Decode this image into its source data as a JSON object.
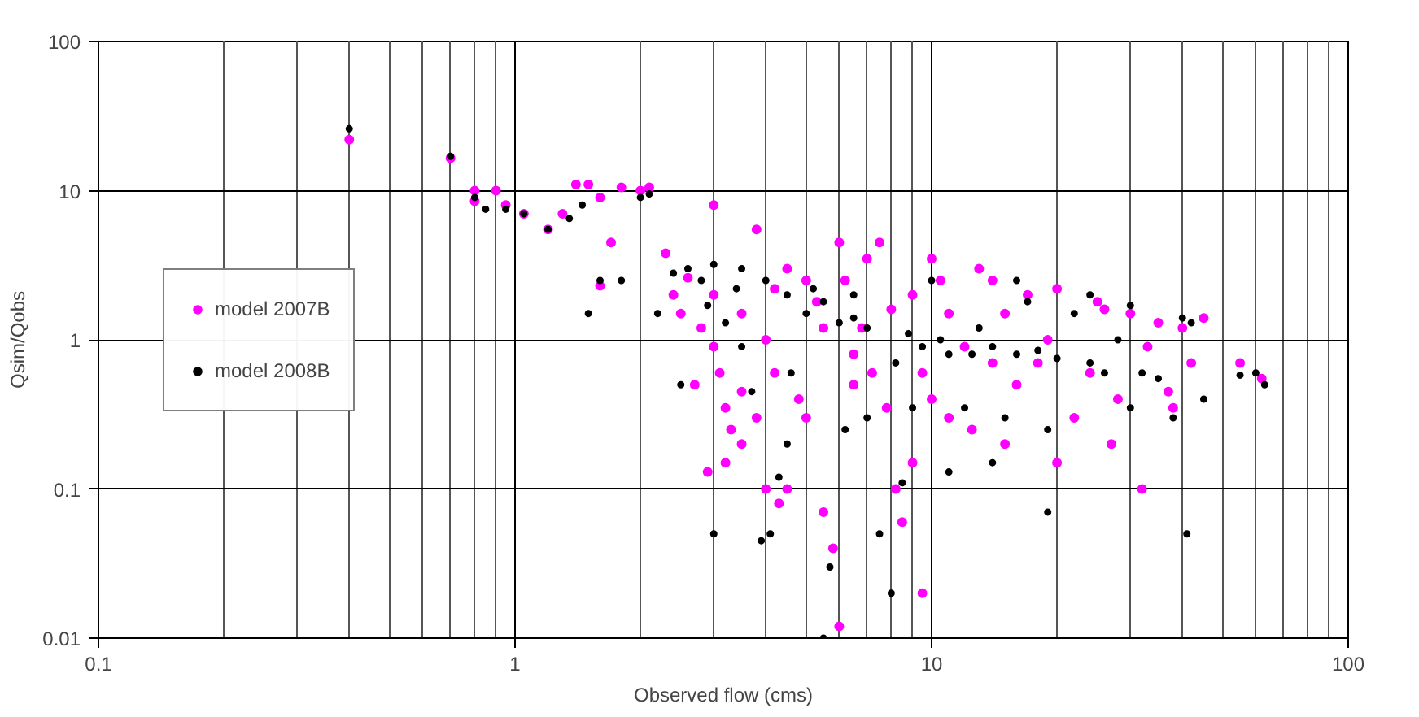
{
  "chart_data": {
    "type": "scatter",
    "xlabel": "Observed flow (cms)",
    "ylabel": "Qsim/Qobs",
    "log": "xy",
    "xlim": [
      0.1,
      100
    ],
    "ylim": [
      0.01,
      100
    ],
    "xticks": [
      0.1,
      1,
      10,
      100
    ],
    "yticks": [
      0.01,
      0.1,
      1,
      10,
      100
    ],
    "grid": true,
    "legend": "left",
    "marker": "circle",
    "series": [
      {
        "name": "model 2007B",
        "color": "#ff00ff",
        "x": [
          0.4,
          0.7,
          0.8,
          0.8,
          0.9,
          0.95,
          1.05,
          1.2,
          1.3,
          1.4,
          1.5,
          1.6,
          1.8,
          2.0,
          2.1,
          1.6,
          1.7,
          2.3,
          2.4,
          2.6,
          2.5,
          2.8,
          3.0,
          3.0,
          3.1,
          3.2,
          3.3,
          3.5,
          3.2,
          2.9,
          3.8,
          4.0,
          4.3,
          4.5,
          2.7,
          3.5,
          4.2,
          4.8,
          5.0,
          5.5,
          6.0,
          5.8,
          6.5,
          6.2,
          7.0,
          6.0,
          7.5,
          5.0,
          4.5,
          3.8,
          3.0,
          4.2,
          5.3,
          6.8,
          7.2,
          7.8,
          8.2,
          8.5,
          9.0,
          9.5,
          10,
          10.5,
          11,
          12,
          10,
          11,
          12.5,
          13,
          14,
          15,
          16,
          15,
          17,
          18,
          20,
          22,
          20,
          25,
          24,
          28,
          30,
          32,
          35,
          37,
          38,
          40,
          42,
          45,
          55,
          62,
          8,
          9,
          3.5,
          4.0,
          5.5,
          6.5,
          9.5,
          14,
          19,
          26,
          27,
          33
        ],
        "values": [
          22,
          16.5,
          10,
          8.5,
          10,
          8,
          7,
          5.5,
          7,
          11,
          11,
          9,
          10.5,
          10,
          10.5,
          2.3,
          4.5,
          3.8,
          2.0,
          2.6,
          1.5,
          1.2,
          2.0,
          0.9,
          0.6,
          0.35,
          0.25,
          0.2,
          0.15,
          0.13,
          0.3,
          0.1,
          0.08,
          0.1,
          0.5,
          0.45,
          0.6,
          0.4,
          0.3,
          0.07,
          0.012,
          0.04,
          0.5,
          2.5,
          3.5,
          4.5,
          4.5,
          2.5,
          3.0,
          5.5,
          8.0,
          2.2,
          1.8,
          1.2,
          0.6,
          0.35,
          0.1,
          0.06,
          0.15,
          0.02,
          3.5,
          2.5,
          1.5,
          0.9,
          0.4,
          0.3,
          0.25,
          3.0,
          2.5,
          1.5,
          0.5,
          0.2,
          2.0,
          0.7,
          2.2,
          0.3,
          0.15,
          1.8,
          0.6,
          0.4,
          1.5,
          0.1,
          1.3,
          0.45,
          0.35,
          1.2,
          0.7,
          1.4,
          0.7,
          0.55,
          1.6,
          2.0,
          1.5,
          1.0,
          1.2,
          0.8,
          0.6,
          0.7,
          1.0,
          1.6,
          0.2,
          0.9
        ]
      },
      {
        "name": "model 2008B",
        "color": "#000000",
        "x": [
          0.4,
          0.7,
          0.8,
          0.85,
          0.95,
          1.05,
          1.2,
          1.35,
          1.45,
          1.6,
          1.5,
          1.8,
          2.0,
          2.1,
          2.2,
          2.4,
          2.6,
          2.8,
          2.9,
          3.0,
          3.2,
          3.4,
          3.5,
          3.7,
          3.9,
          4.1,
          4.3,
          4.5,
          4.6,
          5.0,
          5.2,
          5.5,
          5.7,
          6.0,
          6.2,
          6.5,
          7.0,
          7.5,
          8.0,
          8.2,
          8.8,
          9.5,
          10,
          10.5,
          11,
          12,
          12.5,
          13,
          14,
          15,
          16,
          17,
          18,
          19,
          20,
          22,
          24,
          26,
          28,
          30,
          32,
          35,
          38,
          40,
          41,
          42,
          45,
          55,
          63,
          60,
          3.5,
          4.0,
          4.5,
          5.5,
          6.5,
          3.0,
          2.5,
          7,
          9,
          8.5,
          11,
          14,
          16,
          24,
          30,
          19
        ],
        "values": [
          26,
          17,
          9,
          7.5,
          7.5,
          7,
          5.5,
          6.5,
          8,
          2.5,
          1.5,
          2.5,
          9,
          9.5,
          1.5,
          2.8,
          3.0,
          2.5,
          1.7,
          0.05,
          1.3,
          2.2,
          0.9,
          0.45,
          0.045,
          0.05,
          0.12,
          0.2,
          0.6,
          1.5,
          2.2,
          0.01,
          0.03,
          1.3,
          0.25,
          2.0,
          1.2,
          0.05,
          0.02,
          0.7,
          1.1,
          0.9,
          2.5,
          1.0,
          0.8,
          0.35,
          0.8,
          1.2,
          0.9,
          0.3,
          0.8,
          1.8,
          0.85,
          0.25,
          0.75,
          1.5,
          0.7,
          0.6,
          1.0,
          0.35,
          0.6,
          0.55,
          0.3,
          1.4,
          0.05,
          1.3,
          0.4,
          0.58,
          0.5,
          0.6,
          3.0,
          2.5,
          2.0,
          1.8,
          1.4,
          3.2,
          0.5,
          0.3,
          0.35,
          0.11,
          0.13,
          0.15,
          2.5,
          2.0,
          1.7,
          0.07
        ]
      }
    ]
  }
}
